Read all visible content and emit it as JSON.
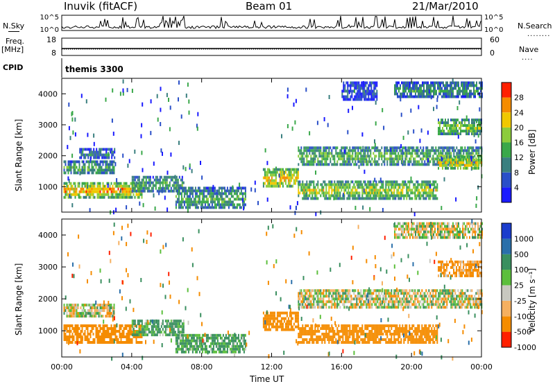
{
  "header": {
    "station": "Inuvik (fitACF)",
    "beam": "Beam 01",
    "date": "21/Mar/2010"
  },
  "params": {
    "nsky_label": "N.Sky",
    "nsearch_label": "N.Search",
    "freq_label": "Freq.",
    "freq_unit": "[MHz]",
    "nave_label": "Nave",
    "cpid_label": "CPID",
    "program": "themis 3300",
    "noise_ticks": [
      "10^5",
      "10^0"
    ],
    "freq_ticks": [
      "18",
      "8"
    ],
    "nave_ticks": [
      "60",
      "0"
    ]
  },
  "axes": {
    "time_label": "Time UT",
    "range_label": "Slant Range [km]",
    "time_ticks": [
      "00:00",
      "04:00",
      "08:00",
      "12:00",
      "16:00",
      "20:00",
      "00:00"
    ],
    "range_ticks": [
      "1000",
      "2000",
      "3000",
      "4000"
    ]
  },
  "chart_data": [
    {
      "type": "heatmap",
      "name": "power",
      "title": "Power [dB]",
      "xlabel": "Time UT",
      "ylabel": "Slant Range [km]",
      "xlim": [
        0,
        24
      ],
      "ylim": [
        180,
        4500
      ],
      "colorbar": {
        "label": "Power [dB]",
        "ticks": [
          "4",
          "8",
          "12",
          "16",
          "20",
          "24",
          "28"
        ],
        "colors": [
          "#1a1aff",
          "#2a4fc8",
          "#3a7f7f",
          "#3aa84a",
          "#8ccc3c",
          "#f0c800",
          "#f58c00",
          "#ff2000"
        ]
      },
      "bands": [
        {
          "t": [
            0.1,
            4.6
          ],
          "r": [
            700,
            1150
          ],
          "v": 26
        },
        {
          "t": [
            0.1,
            3.0
          ],
          "r": [
            1450,
            1850
          ],
          "v": 14
        },
        {
          "t": [
            1.0,
            3.0
          ],
          "r": [
            1950,
            2250
          ],
          "v": 10
        },
        {
          "t": [
            4.0,
            7.0
          ],
          "r": [
            850,
            1350
          ],
          "v": 14
        },
        {
          "t": [
            6.5,
            10.5
          ],
          "r": [
            300,
            1000
          ],
          "v": 14
        },
        {
          "t": [
            11.5,
            13.5
          ],
          "r": [
            1000,
            1600
          ],
          "v": 24
        },
        {
          "t": [
            13.5,
            21.5
          ],
          "r": [
            650,
            1200
          ],
          "v": 20
        },
        {
          "t": [
            13.5,
            24.0
          ],
          "r": [
            1700,
            2300
          ],
          "v": 16
        },
        {
          "t": [
            21.5,
            24.0
          ],
          "r": [
            1600,
            2000
          ],
          "v": 24
        },
        {
          "t": [
            21.5,
            24.0
          ],
          "r": [
            2700,
            3200
          ],
          "v": 18
        },
        {
          "t": [
            19.0,
            24.0
          ],
          "r": [
            3900,
            4400
          ],
          "v": 12
        },
        {
          "t": [
            16.0,
            18.0
          ],
          "r": [
            3800,
            4400
          ],
          "v": 6
        }
      ]
    },
    {
      "type": "heatmap",
      "name": "velocity",
      "title": "Velocity [m s-1]",
      "xlabel": "Time UT",
      "ylabel": "Slant Range [km]",
      "xlim": [
        0,
        24
      ],
      "ylim": [
        180,
        4500
      ],
      "colorbar": {
        "label": "Velocity [m s⁻¹]",
        "ticks": [
          "1000",
          "500",
          "100",
          "25",
          "-25",
          "-100",
          "-500",
          "-1000"
        ],
        "colors": [
          "#1a3ccc",
          "#2a6faa",
          "#3a8f5f",
          "#5cbf3c",
          "#c8c8c0",
          "#f5b060",
          "#f58c00",
          "#ff2000"
        ]
      },
      "bands": [
        {
          "t": [
            0.1,
            4.6
          ],
          "r": [
            650,
            1200
          ],
          "v": -300
        },
        {
          "t": [
            0.1,
            3.0
          ],
          "r": [
            1450,
            1850
          ],
          "v": 0
        },
        {
          "t": [
            4.0,
            7.0
          ],
          "r": [
            850,
            1350
          ],
          "v": 150
        },
        {
          "t": [
            6.5,
            10.5
          ],
          "r": [
            300,
            900
          ],
          "v": 150
        },
        {
          "t": [
            11.5,
            13.5
          ],
          "r": [
            1000,
            1600
          ],
          "v": -300
        },
        {
          "t": [
            13.5,
            21.5
          ],
          "r": [
            650,
            1200
          ],
          "v": -300
        },
        {
          "t": [
            13.5,
            24.0
          ],
          "r": [
            1700,
            2300
          ],
          "v": 0
        },
        {
          "t": [
            21.5,
            24.0
          ],
          "r": [
            2700,
            3200
          ],
          "v": -150
        },
        {
          "t": [
            19.0,
            24.0
          ],
          "r": [
            3900,
            4400
          ],
          "v": 0
        }
      ]
    }
  ]
}
